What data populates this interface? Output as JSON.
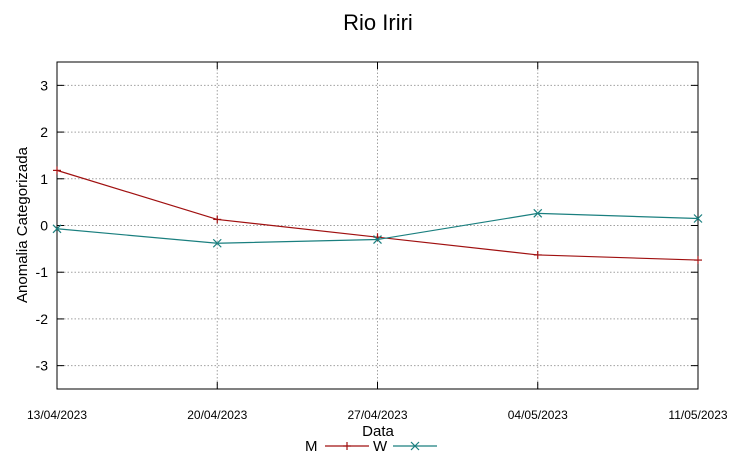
{
  "chart_data": {
    "type": "line",
    "title": "Rio Iriri",
    "xlabel": "Data",
    "ylabel": "Anomalia Categorizada",
    "categories": [
      "13/04/2023",
      "20/04/2023",
      "27/04/2023",
      "04/05/2023",
      "11/05/2023"
    ],
    "ylim": [
      -3.5,
      3.5
    ],
    "yticks": [
      -3,
      -2,
      -1,
      0,
      1,
      2,
      3
    ],
    "grid": true,
    "legend_position": "bottom",
    "series": [
      {
        "name": "M",
        "color": "#a01010",
        "marker": "plus",
        "values": [
          1.18,
          0.13,
          -0.25,
          -0.63,
          -0.74
        ]
      },
      {
        "name": "W",
        "color": "#1a7f7f",
        "marker": "cross",
        "values": [
          -0.07,
          -0.38,
          -0.3,
          0.26,
          0.15
        ]
      }
    ]
  }
}
